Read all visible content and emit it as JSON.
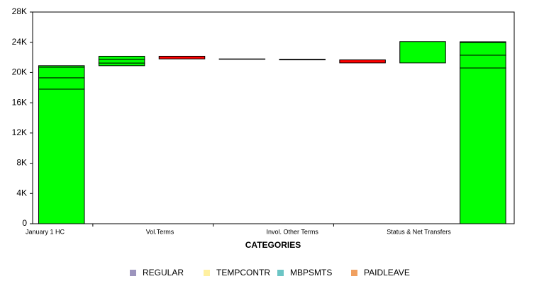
{
  "chart_data": {
    "type": "waterfall",
    "x_label": "CATEGORIES",
    "categories": [
      "January 1 HC",
      null,
      "Vol.Terms",
      null,
      "Invol. Other Terms",
      null,
      "Status & Net Transfers",
      null
    ],
    "totals": [
      true,
      false,
      false,
      false,
      false,
      false,
      false,
      true
    ],
    "series": [
      {
        "name": "REGULAR",
        "color": "#9c94bd",
        "values": [
          17800,
          350,
          -350,
          -50,
          -80,
          -400,
          2820,
          20600
        ]
      },
      {
        "name": "TEMPCONTR",
        "color": "#fff0a0",
        "values": [
          1500,
          500,
          0,
          0,
          0,
          0,
          0,
          1690
        ]
      },
      {
        "name": "MBPSMTS",
        "color": "#6cc5c5",
        "values": [
          1400,
          400,
          0,
          0,
          0,
          0,
          0,
          1680
        ]
      },
      {
        "name": "PAIDLEAVE",
        "color": "#f0a060",
        "values": [
          200,
          0,
          0,
          0,
          0,
          0,
          0,
          100
        ]
      }
    ],
    "increase_color": "#00ff00",
    "decrease_color": "#ff0000",
    "ylim": [
      0,
      28000
    ],
    "yticks": [
      0,
      {
        "value": 4000,
        "label": "4K"
      },
      {
        "value": 8000,
        "label": "8K"
      },
      {
        "value": 12000,
        "label": "12K"
      },
      {
        "value": 16000,
        "label": "16K"
      },
      {
        "value": 20000,
        "label": "20K"
      },
      {
        "value": 24000,
        "label": "24K"
      },
      {
        "value": 28000,
        "label": "28K"
      }
    ],
    "grid": false
  }
}
